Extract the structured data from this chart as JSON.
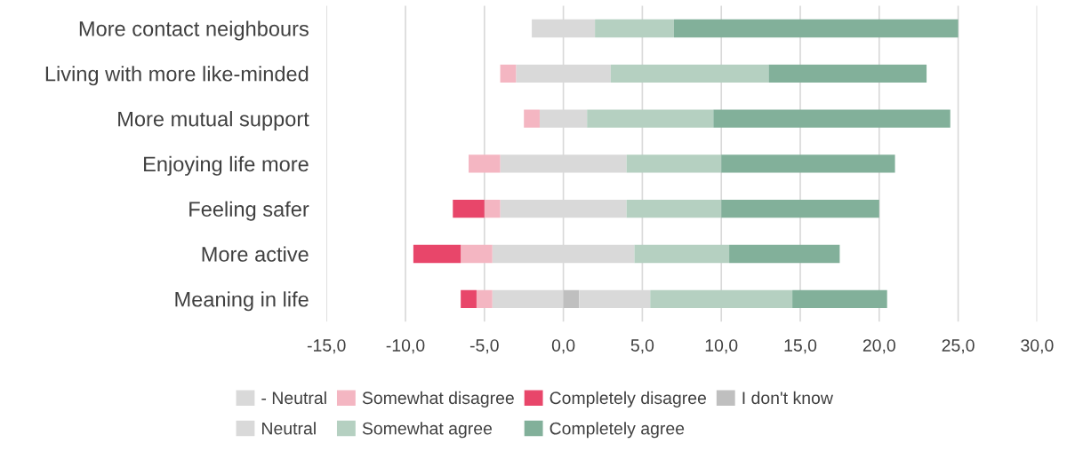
{
  "chart_data": {
    "type": "bar",
    "orientation": "horizontal",
    "stacked": true,
    "grid": "x",
    "legend": "bottom",
    "categories": [
      "More contact neighbours",
      "Living with more like-minded",
      "More mutual support",
      "Enjoying life more",
      "Feeling safer",
      "More active",
      "Meaning in life"
    ],
    "xlim": [
      -15,
      30
    ],
    "xticks": [
      {
        "value": -15,
        "label": "-15,0"
      },
      {
        "value": -10,
        "label": "-10,0"
      },
      {
        "value": -5,
        "label": "-5,0"
      },
      {
        "value": 0,
        "label": "0,0"
      },
      {
        "value": 5,
        "label": "5,0"
      },
      {
        "value": 10,
        "label": "10,0"
      },
      {
        "value": 15,
        "label": "15,0"
      },
      {
        "value": 20,
        "label": "20,0"
      },
      {
        "value": 25,
        "label": "25,0"
      },
      {
        "value": 30,
        "label": "30,0"
      }
    ],
    "series": [
      {
        "name": "- Neutral",
        "color": "#d9d9d9",
        "values": [
          -2,
          -3,
          -1.5,
          -4,
          -4,
          -4.5,
          -4.5
        ]
      },
      {
        "name": "Somewhat disagree",
        "color": "#f4b6c2",
        "values": [
          0,
          -1,
          -1,
          -2,
          -1,
          -2,
          -1
        ]
      },
      {
        "name": "Completely disagree",
        "color": "#e8466a",
        "values": [
          0,
          0,
          0,
          0,
          -2,
          -3,
          -1
        ]
      },
      {
        "name": "I don't know",
        "color": "#bfbfbf",
        "values": [
          0,
          0,
          0,
          0,
          0,
          0,
          1
        ]
      },
      {
        "name": "Neutral",
        "color": "#d9d9d9",
        "values": [
          2,
          3,
          1.5,
          4,
          4,
          4.5,
          4.5
        ]
      },
      {
        "name": "Somewhat agree",
        "color": "#b5d0c1",
        "values": [
          5,
          10,
          8,
          6,
          6,
          6,
          9
        ]
      },
      {
        "name": "Completely agree",
        "color": "#82b09a",
        "values": [
          18,
          10,
          15,
          11,
          10,
          7,
          6
        ]
      }
    ]
  }
}
